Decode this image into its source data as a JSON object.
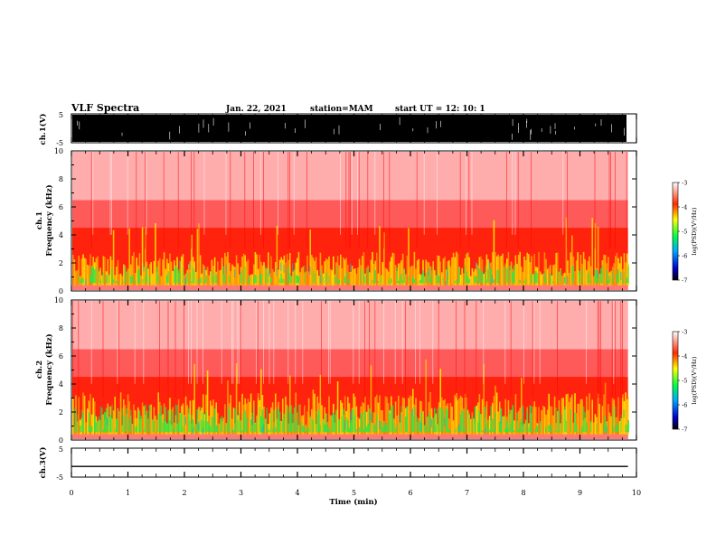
{
  "header": {
    "title": "VLF Spectra",
    "date": "Jan. 22, 2021",
    "station": "station=MAM",
    "start": "start  UT =   12: 10: 1"
  },
  "chart_data": [
    {
      "type": "line",
      "name": "ch1-waveform",
      "ylabel": "ch.1(V)",
      "ylim": [
        -5,
        5
      ],
      "ytick_labels": [
        "5",
        "-5"
      ],
      "xlim": [
        0,
        10
      ],
      "description": "dense noise waveform"
    },
    {
      "type": "heatmap",
      "name": "ch1-spectrogram",
      "ylabel": "ch.1\nFrequency (kHz)",
      "ylim": [
        0,
        10
      ],
      "ytick_labels": [
        "0",
        "2",
        "4",
        "6",
        "8",
        "10"
      ],
      "xlim": [
        0,
        10
      ],
      "colorbar": {
        "label": "log(PSD)(V²/Hz)",
        "range": [
          -7,
          -3
        ],
        "tick_labels": [
          "-3",
          "-4",
          "-5",
          "-6",
          "-7"
        ]
      }
    },
    {
      "type": "heatmap",
      "name": "ch2-spectrogram",
      "ylabel": "ch.2\nFrequency (kHz)",
      "ylim": [
        0,
        10
      ],
      "ytick_labels": [
        "0",
        "2",
        "4",
        "6",
        "8",
        "10"
      ],
      "xlim": [
        0,
        10
      ],
      "colorbar": {
        "label": "log(PSD)(V²/Hz)",
        "range": [
          -7,
          -3
        ],
        "tick_labels": [
          "-3",
          "-4",
          "-5",
          "-6",
          "-7"
        ]
      }
    },
    {
      "type": "line",
      "name": "ch3-waveform",
      "ylabel": "ch.3(V)",
      "ylim": [
        -5,
        5
      ],
      "ytick_labels": [
        "5",
        "-5"
      ],
      "xlim": [
        0,
        10
      ],
      "x": [
        0,
        9.85
      ],
      "y": [
        -1.3,
        -1.3
      ]
    }
  ],
  "xaxis": {
    "label": "Time (min)",
    "tick_labels": [
      "0",
      "1",
      "2",
      "3",
      "4",
      "5",
      "6",
      "7",
      "8",
      "9",
      "10"
    ],
    "data_end": 9.85
  }
}
